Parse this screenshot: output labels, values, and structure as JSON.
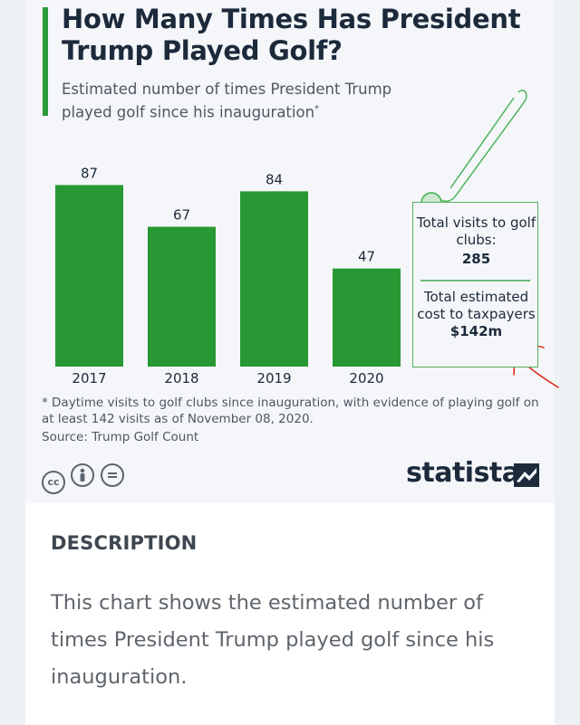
{
  "header": {
    "title": "How Many Times Has President Trump Played Golf?",
    "subtitle": "Estimated number of times President Trump played golf since his inauguration",
    "subtitle_marker": "*"
  },
  "chart_data": {
    "type": "bar",
    "title": "How Many Times Has President Trump Played Golf?",
    "subtitle": "Estimated number of times President Trump played golf since his inauguration*",
    "categories": [
      "2017",
      "2018",
      "2019",
      "2020"
    ],
    "values": [
      87,
      67,
      84,
      47
    ],
    "ylim": [
      0,
      95
    ],
    "grid": false,
    "bar_color": "#289835",
    "data_labels": true
  },
  "summary": {
    "visits_label": "Total visits to golf clubs:",
    "visits_value": "285",
    "cost_label": "Total estimated cost to taxpayers",
    "cost_value": "$142m"
  },
  "footnote": "* Daytime visits to golf clubs since inauguration, with evidence of playing golf on at least 142 visits as of November 08, 2020.",
  "source": "Source: Trump Golf Count",
  "license_icons": [
    "cc-icon",
    "by-person-icon",
    "nd-equals-icon"
  ],
  "brand": {
    "name": "statista",
    "color": "#1c2a3b"
  },
  "description": {
    "heading": "DESCRIPTION",
    "text": "This chart shows the estimated number of times President Trump played golf since his inauguration."
  },
  "colors": {
    "accent_green": "#2e9a3d",
    "annotation_red": "#e0301e"
  }
}
